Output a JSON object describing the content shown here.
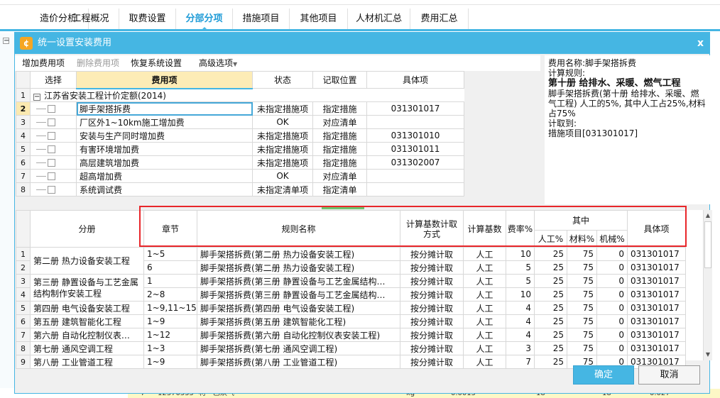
{
  "tabs": [
    {
      "label": "造价分析"
    },
    {
      "label": "工程概况"
    },
    {
      "label": "取费设置"
    },
    {
      "label": "分部分项",
      "active": true
    },
    {
      "label": "措施项目"
    },
    {
      "label": "其他项目"
    },
    {
      "label": "人材机汇总"
    },
    {
      "label": "费用汇总"
    }
  ],
  "background_row": {
    "index": "7",
    "code": "12370335",
    "type": "材",
    "name": "乙炔气",
    "unit": "kg",
    "qty": "0.0015",
    "price1": "18",
    "price2": "18",
    "total": "0.027"
  },
  "dialog": {
    "title": "统一设置安装费用",
    "close": "x",
    "toolbar": {
      "add": "增加费用项",
      "delete": "删除费用项",
      "restore": "恢复系统设置",
      "advanced": "高级选项"
    },
    "upper_table": {
      "headers": [
        "选择",
        "费用项",
        "状态",
        "记取位置",
        "具体项"
      ],
      "group": {
        "index": "1",
        "label": "江苏省安装工程计价定额(2014)"
      },
      "rows": [
        {
          "index": "2",
          "name": "脚手架搭拆费",
          "status": "未指定措施项",
          "position": "指定措施",
          "item": "031301017",
          "selected": true
        },
        {
          "index": "3",
          "name": "厂区外1~10km施工增加费",
          "status": "OK",
          "position": "对应清单",
          "item": ""
        },
        {
          "index": "4",
          "name": "安装与生产同时增加费",
          "status": "未指定措施项",
          "position": "指定措施",
          "item": "031301010"
        },
        {
          "index": "5",
          "name": "有害环境增加费",
          "status": "未指定措施项",
          "position": "指定措施",
          "item": "031301011"
        },
        {
          "index": "6",
          "name": "高层建筑增加费",
          "status": "未指定措施项",
          "position": "指定措施",
          "item": "031302007"
        },
        {
          "index": "7",
          "name": "超高增加费",
          "status": "OK",
          "position": "对应清单",
          "item": ""
        },
        {
          "index": "8",
          "name": "系统调试费",
          "status": "未指定清单项",
          "position": "指定清单",
          "item": ""
        }
      ]
    },
    "info": {
      "name_line": "费用名称:脚手架搭拆费",
      "rule_label": "计算规则:",
      "rule_title": "第十册  给排水、采暖、燃气工程",
      "rule_text": "脚手架搭拆费(第十册 给排水、采暖、燃气工程) 人工的5%, 其中人工占25%,材料占75%",
      "to_label": "计取到:",
      "to_value": "措施项目[031301017]"
    },
    "lower_table": {
      "headers": {
        "volume": "分册",
        "chapter": "章节",
        "rule": "规则名称",
        "method": "计算基数计取方式",
        "base": "计算基数",
        "rate": "费率%",
        "of_which": "其中",
        "labor": "人工%",
        "material": "材料%",
        "machine": "机械%",
        "item": "具体项"
      },
      "rows": [
        {
          "index": "1",
          "volume": "第二册 热力设备安装工程",
          "chapter": "1~5",
          "rule": "脚手架搭拆费(第二册 热力设备安装工程)",
          "method": "按分摊计取",
          "base": "人工",
          "rate": "10",
          "labor": "25",
          "material": "75",
          "machine": "0",
          "item": "031301017"
        },
        {
          "index": "2",
          "volume": null,
          "chapter": "6",
          "rule": "脚手架搭拆费(第二册 热力设备安装工程)",
          "method": "按分摊计取",
          "base": "人工",
          "rate": "5",
          "labor": "25",
          "material": "75",
          "machine": "0",
          "item": "031301017"
        },
        {
          "index": "3",
          "volume": "第三册 静置设备与工艺金属结构制作安装工程",
          "chapter": "1",
          "rule": "脚手架搭拆费(第三册 静置设备与工艺金属结构…",
          "method": "按分摊计取",
          "base": "人工",
          "rate": "5",
          "labor": "25",
          "material": "75",
          "machine": "0",
          "item": "031301017"
        },
        {
          "index": "4",
          "volume": null,
          "chapter": "2~8",
          "rule": "脚手架搭拆费(第三册 静置设备与工艺金属结构…",
          "method": "按分摊计取",
          "base": "人工",
          "rate": "10",
          "labor": "25",
          "material": "75",
          "machine": "0",
          "item": "031301017"
        },
        {
          "index": "5",
          "volume": "第四册 电气设备安装工程",
          "chapter": "1~9,11~15",
          "rule": "脚手架搭拆费(第四册 电气设备安装工程)",
          "method": "按分摊计取",
          "base": "人工",
          "rate": "4",
          "labor": "25",
          "material": "75",
          "machine": "0",
          "item": "031301017"
        },
        {
          "index": "6",
          "volume": "第五册 建筑智能化工程",
          "chapter": "1~9",
          "rule": "脚手架搭拆费(第五册 建筑智能化工程)",
          "method": "按分摊计取",
          "base": "人工",
          "rate": "4",
          "labor": "25",
          "material": "75",
          "machine": "0",
          "item": "031301017"
        },
        {
          "index": "7",
          "volume": "第六册 自动化控制仪表…",
          "chapter": "1~12",
          "rule": "脚手架搭拆费(第六册 自动化控制仪表安装工程)",
          "method": "按分摊计取",
          "base": "人工",
          "rate": "4",
          "labor": "25",
          "material": "75",
          "machine": "0",
          "item": "031301017"
        },
        {
          "index": "8",
          "volume": "第七册 通风空调工程",
          "chapter": "1~3",
          "rule": "脚手架搭拆费(第七册 通风空调工程)",
          "method": "按分摊计取",
          "base": "人工",
          "rate": "3",
          "labor": "25",
          "material": "75",
          "machine": "0",
          "item": "031301017"
        },
        {
          "index": "9",
          "volume": "第八册 工业管道工程",
          "chapter": "1~9",
          "rule": "脚手架搭拆费(第八册 工业管道工程)",
          "method": "按分摊计取",
          "base": "人工",
          "rate": "7",
          "labor": "25",
          "material": "75",
          "machine": "0",
          "item": "031301017"
        }
      ]
    },
    "buttons": {
      "ok": "确定",
      "cancel": "取消"
    }
  },
  "colors": {
    "accent": "#45b6e3",
    "highlight_box": "#e8262a",
    "header_highlight": "#fdecb6"
  }
}
